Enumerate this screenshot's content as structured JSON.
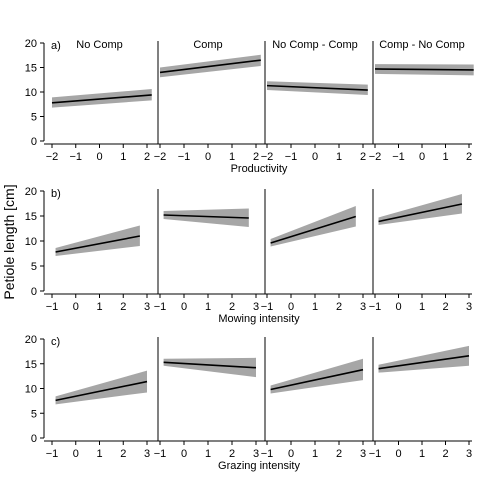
{
  "figure": {
    "ylabel": "Petiole length [cm]",
    "panel_titles": [
      "No Comp",
      "Comp",
      "No Comp - Comp",
      "Comp - No Comp"
    ]
  },
  "chart_data": [
    {
      "type": "line",
      "row_label": "a)",
      "xlabel": "Productivity",
      "xlim": [
        -2,
        2
      ],
      "xticks": [
        -2,
        -1,
        0,
        1,
        2
      ],
      "ylim": [
        0,
        20
      ],
      "yticks": [
        0,
        5,
        10,
        15,
        20
      ],
      "grid": false,
      "panels": [
        {
          "title": "No Comp",
          "x": [
            -2,
            2.2
          ],
          "y": [
            7.8,
            9.4
          ],
          "ci_low": [
            6.8,
            8.3
          ],
          "ci_high": [
            8.9,
            10.6
          ]
        },
        {
          "title": "Comp",
          "x": [
            -2,
            2.2
          ],
          "y": [
            14.0,
            16.5
          ],
          "ci_low": [
            13.0,
            15.3
          ],
          "ci_high": [
            15.0,
            17.6
          ]
        },
        {
          "title": "No Comp - Comp",
          "x": [
            -2,
            2.2
          ],
          "y": [
            11.3,
            10.4
          ],
          "ci_low": [
            10.4,
            9.4
          ],
          "ci_high": [
            12.2,
            11.5
          ]
        },
        {
          "title": "Comp - No Comp",
          "x": [
            -2,
            2.2
          ],
          "y": [
            14.7,
            14.5
          ],
          "ci_low": [
            13.7,
            13.4
          ],
          "ci_high": [
            15.7,
            15.6
          ]
        }
      ]
    },
    {
      "type": "line",
      "row_label": "b)",
      "xlabel": "Mowing intensity",
      "xlim": [
        -1,
        3
      ],
      "xticks": [
        -1,
        0,
        1,
        2,
        3
      ],
      "ylim": [
        0,
        20
      ],
      "yticks": [
        0,
        5,
        10,
        15,
        20
      ],
      "grid": false,
      "panels": [
        {
          "title": "No Comp",
          "x": [
            -0.85,
            2.7
          ],
          "y": [
            7.8,
            11.0
          ],
          "ci_low": [
            7.0,
            9.0
          ],
          "ci_high": [
            8.6,
            13.1
          ]
        },
        {
          "title": "Comp",
          "x": [
            -0.85,
            2.7
          ],
          "y": [
            15.2,
            14.6
          ],
          "ci_low": [
            14.4,
            12.8
          ],
          "ci_high": [
            16.0,
            16.5
          ]
        },
        {
          "title": "No Comp - Comp",
          "x": [
            -0.85,
            2.7
          ],
          "y": [
            9.6,
            14.9
          ],
          "ci_low": [
            8.9,
            12.9
          ],
          "ci_high": [
            10.4,
            17.0
          ]
        },
        {
          "title": "Comp - No Comp",
          "x": [
            -0.85,
            2.7
          ],
          "y": [
            13.9,
            17.4
          ],
          "ci_low": [
            13.2,
            15.5
          ],
          "ci_high": [
            14.7,
            19.4
          ]
        }
      ]
    },
    {
      "type": "line",
      "row_label": "c)",
      "xlabel": "Grazing intensity",
      "xlim": [
        -1,
        3
      ],
      "xticks": [
        -1,
        0,
        1,
        2,
        3
      ],
      "ylim": [
        0,
        20
      ],
      "yticks": [
        0,
        5,
        10,
        15,
        20
      ],
      "grid": false,
      "panels": [
        {
          "title": "No Comp",
          "x": [
            -0.85,
            3.0
          ],
          "y": [
            7.6,
            11.4
          ],
          "ci_low": [
            6.8,
            9.2
          ],
          "ci_high": [
            8.4,
            13.6
          ]
        },
        {
          "title": "Comp",
          "x": [
            -0.85,
            3.0
          ],
          "y": [
            15.3,
            14.2
          ],
          "ci_low": [
            14.6,
            12.3
          ],
          "ci_high": [
            16.0,
            16.2
          ]
        },
        {
          "title": "No Comp - Comp",
          "x": [
            -0.85,
            3.0
          ],
          "y": [
            9.8,
            13.8
          ],
          "ci_low": [
            9.0,
            11.7
          ],
          "ci_high": [
            10.6,
            16.0
          ]
        },
        {
          "title": "Comp - No Comp",
          "x": [
            -0.85,
            3.0
          ],
          "y": [
            14.0,
            16.6
          ],
          "ci_low": [
            13.2,
            14.6
          ],
          "ci_high": [
            14.8,
            18.6
          ]
        }
      ]
    }
  ]
}
